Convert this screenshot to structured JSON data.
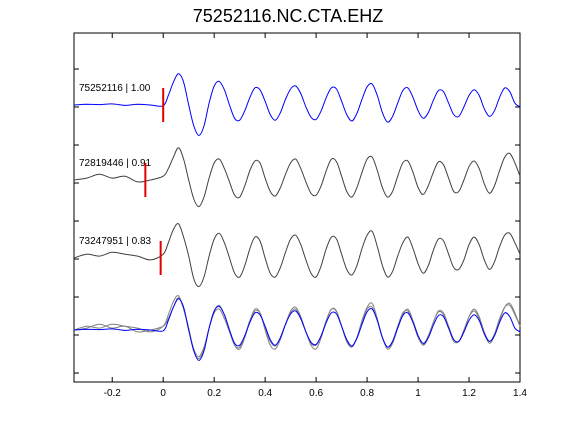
{
  "chart_data": {
    "type": "line",
    "title": "75252116.NC.CTA.EHZ",
    "xlim": [
      -0.35,
      1.4
    ],
    "x_ticks": [
      -0.2,
      0,
      0.2,
      0.4,
      0.6,
      0.8,
      1,
      1.2,
      1.4
    ],
    "x_tick_labels": [
      "-0.2",
      "0",
      "0.2",
      "0.4",
      "0.6",
      "0.8",
      "1",
      "1.2",
      "1.4"
    ],
    "y_tick_labels": false,
    "colors": {
      "reference": "#0000ff",
      "other": "#404040",
      "overlay_other": "#808080",
      "pick": "#e00000",
      "axes": "#000000"
    },
    "traces": [
      {
        "label": "75252116 | 1.00",
        "event": "75252116",
        "correlation": 1.0,
        "color": "#0000ff",
        "pick_time": 0.0,
        "x": [
          -0.35,
          -0.3,
          -0.25,
          -0.2,
          -0.15,
          -0.1,
          -0.05,
          0.0,
          0.02,
          0.04,
          0.06,
          0.08,
          0.1,
          0.12,
          0.14,
          0.16,
          0.18,
          0.2,
          0.22,
          0.24,
          0.26,
          0.28,
          0.3,
          0.32,
          0.34,
          0.36,
          0.38,
          0.4,
          0.42,
          0.44,
          0.46,
          0.48,
          0.5,
          0.52,
          0.54,
          0.56,
          0.58,
          0.6,
          0.62,
          0.64,
          0.66,
          0.68,
          0.7,
          0.72,
          0.74,
          0.76,
          0.78,
          0.8,
          0.82,
          0.84,
          0.86,
          0.88,
          0.9,
          0.92,
          0.94,
          0.96,
          0.98,
          1.0,
          1.02,
          1.04,
          1.06,
          1.08,
          1.1,
          1.12,
          1.14,
          1.16,
          1.18,
          1.2,
          1.22,
          1.24,
          1.26,
          1.28,
          1.3,
          1.32,
          1.34,
          1.36,
          1.38,
          1.4
        ],
        "y": [
          0.0,
          0.02,
          0.01,
          0.03,
          -0.01,
          0.02,
          0.0,
          -0.02,
          0.25,
          0.6,
          0.82,
          0.6,
          0.0,
          -0.55,
          -0.8,
          -0.55,
          0.05,
          0.5,
          0.62,
          0.4,
          0.0,
          -0.35,
          -0.4,
          -0.15,
          0.2,
          0.45,
          0.4,
          0.1,
          -0.25,
          -0.4,
          -0.2,
          0.15,
          0.42,
          0.5,
          0.3,
          -0.05,
          -0.32,
          -0.38,
          -0.15,
          0.2,
          0.45,
          0.42,
          0.1,
          -0.25,
          -0.42,
          -0.22,
          0.15,
          0.48,
          0.55,
          0.25,
          -0.2,
          -0.45,
          -0.3,
          0.05,
          0.38,
          0.45,
          0.2,
          -0.15,
          -0.35,
          -0.2,
          0.12,
          0.38,
          0.35,
          0.05,
          -0.25,
          -0.3,
          -0.05,
          0.25,
          0.4,
          0.25,
          -0.1,
          -0.3,
          -0.15,
          0.2,
          0.45,
          0.35,
          0.05,
          -0.05
        ]
      },
      {
        "label": "72819446 | 0.91",
        "event": "72819446",
        "correlation": 0.91,
        "color": "#404040",
        "pick_time": -0.07,
        "x": [
          -0.35,
          -0.3,
          -0.25,
          -0.2,
          -0.15,
          -0.1,
          -0.05,
          0.0,
          0.02,
          0.04,
          0.06,
          0.08,
          0.1,
          0.12,
          0.14,
          0.16,
          0.18,
          0.2,
          0.22,
          0.24,
          0.26,
          0.28,
          0.3,
          0.32,
          0.34,
          0.36,
          0.38,
          0.4,
          0.42,
          0.44,
          0.46,
          0.48,
          0.5,
          0.52,
          0.54,
          0.56,
          0.58,
          0.6,
          0.62,
          0.64,
          0.66,
          0.68,
          0.7,
          0.72,
          0.74,
          0.76,
          0.78,
          0.8,
          0.82,
          0.84,
          0.86,
          0.88,
          0.9,
          0.92,
          0.94,
          0.96,
          0.98,
          1.0,
          1.02,
          1.04,
          1.06,
          1.08,
          1.1,
          1.12,
          1.14,
          1.16,
          1.18,
          1.2,
          1.22,
          1.24,
          1.26,
          1.28,
          1.3,
          1.32,
          1.34,
          1.36,
          1.38,
          1.4
        ],
        "y": [
          0.0,
          0.05,
          0.15,
          0.05,
          0.1,
          -0.05,
          0.0,
          0.1,
          0.3,
          0.6,
          0.85,
          0.55,
          0.0,
          -0.5,
          -0.7,
          -0.45,
          0.05,
          0.45,
          0.55,
          0.3,
          -0.05,
          -0.4,
          -0.45,
          -0.15,
          0.25,
          0.5,
          0.45,
          0.05,
          -0.3,
          -0.42,
          -0.2,
          0.15,
          0.45,
          0.55,
          0.3,
          -0.05,
          -0.35,
          -0.4,
          -0.15,
          0.25,
          0.55,
          0.48,
          0.1,
          -0.3,
          -0.45,
          -0.2,
          0.2,
          0.55,
          0.6,
          0.25,
          -0.2,
          -0.45,
          -0.3,
          0.1,
          0.45,
          0.5,
          0.2,
          -0.2,
          -0.38,
          -0.15,
          0.2,
          0.48,
          0.4,
          0.05,
          -0.3,
          -0.3,
          0.0,
          0.35,
          0.5,
          0.3,
          -0.1,
          -0.35,
          -0.15,
          0.25,
          0.6,
          0.7,
          0.45,
          0.1
        ]
      },
      {
        "label": "73247951 | 0.83",
        "event": "73247951",
        "correlation": 0.83,
        "color": "#404040",
        "pick_time": -0.01,
        "x": [
          -0.35,
          -0.3,
          -0.25,
          -0.2,
          -0.15,
          -0.1,
          -0.05,
          0.0,
          0.02,
          0.04,
          0.06,
          0.08,
          0.1,
          0.12,
          0.14,
          0.16,
          0.18,
          0.2,
          0.22,
          0.24,
          0.26,
          0.28,
          0.3,
          0.32,
          0.34,
          0.36,
          0.38,
          0.4,
          0.42,
          0.44,
          0.46,
          0.48,
          0.5,
          0.52,
          0.54,
          0.56,
          0.58,
          0.6,
          0.62,
          0.64,
          0.66,
          0.68,
          0.7,
          0.72,
          0.74,
          0.76,
          0.78,
          0.8,
          0.82,
          0.84,
          0.86,
          0.88,
          0.9,
          0.92,
          0.94,
          0.96,
          0.98,
          1.0,
          1.02,
          1.04,
          1.06,
          1.08,
          1.1,
          1.12,
          1.14,
          1.16,
          1.18,
          1.2,
          1.22,
          1.24,
          1.26,
          1.28,
          1.3,
          1.32,
          1.34,
          1.36,
          1.38,
          1.4
        ],
        "y": [
          0.0,
          0.1,
          0.05,
          0.15,
          0.1,
          0.05,
          -0.05,
          0.1,
          0.4,
          0.75,
          0.9,
          0.55,
          0.05,
          -0.55,
          -0.75,
          -0.5,
          0.05,
          0.5,
          0.65,
          0.4,
          0.0,
          -0.4,
          -0.5,
          -0.2,
          0.25,
          0.55,
          0.45,
          0.0,
          -0.4,
          -0.5,
          -0.25,
          0.15,
          0.5,
          0.6,
          0.35,
          -0.05,
          -0.4,
          -0.5,
          -0.2,
          0.25,
          0.55,
          0.5,
          0.1,
          -0.3,
          -0.45,
          -0.2,
          0.25,
          0.6,
          0.7,
          0.3,
          -0.2,
          -0.5,
          -0.35,
          0.05,
          0.4,
          0.55,
          0.25,
          -0.15,
          -0.4,
          -0.2,
          0.2,
          0.5,
          0.45,
          0.1,
          -0.25,
          -0.3,
          -0.05,
          0.35,
          0.55,
          0.35,
          -0.05,
          -0.3,
          -0.1,
          0.3,
          0.6,
          0.65,
          0.4,
          0.1
        ]
      }
    ]
  }
}
